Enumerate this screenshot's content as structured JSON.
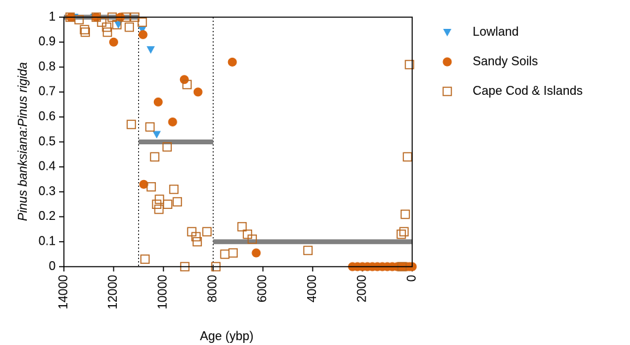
{
  "chart_data": {
    "type": "scatter",
    "x_label": "Age (ybp)",
    "y_label": "Pinus banksiana:Pinus rigida",
    "xlim": [
      14000,
      0
    ],
    "xticks": [
      14000,
      12000,
      10000,
      8000,
      6000,
      4000,
      2000,
      0
    ],
    "ylim": [
      0,
      1
    ],
    "yticks": [
      0,
      0.1,
      0.2,
      0.3,
      0.4,
      0.5,
      0.6,
      0.7,
      0.8,
      0.9,
      1
    ],
    "legend": "outside-right",
    "reference_lines": [
      {
        "x": [
          14000,
          11000
        ],
        "y": 1
      },
      {
        "x": [
          11000,
          8000
        ],
        "y": 0.5
      },
      {
        "x": [
          8000,
          0
        ],
        "y": 0.1
      }
    ],
    "boundaries": [
      11000,
      8000
    ],
    "series": [
      {
        "name": "Lowland",
        "color": "#3a9ee4",
        "marker": "triangle",
        "x": [
          13580,
          12780,
          11810,
          10850,
          10510,
          10270
        ],
        "values": [
          1.0,
          1.0,
          0.97,
          0.95,
          0.87,
          0.53
        ]
      },
      {
        "name": "Sandy Soils",
        "color": "#d9650f",
        "marker": "circle",
        "x": [
          13720,
          12700,
          11730,
          12000,
          10820,
          10790,
          10210,
          9630,
          9160,
          8610,
          7230,
          6270,
          2400,
          2200,
          2000,
          1800,
          1600,
          1400,
          1200,
          1000,
          800,
          600,
          400,
          200,
          100,
          0
        ],
        "values": [
          1.0,
          1.0,
          1.0,
          0.9,
          0.93,
          0.33,
          0.66,
          0.58,
          0.75,
          0.7,
          0.82,
          0.055,
          0,
          0,
          0,
          0,
          0,
          0,
          0,
          0,
          0,
          0,
          0,
          0,
          0,
          0
        ]
      },
      {
        "name": "Cape Cod & Islands",
        "color": "#b8651c",
        "marker": "square-open",
        "x": [
          13750,
          13390,
          13170,
          13140,
          12700,
          12480,
          12280,
          12250,
          12060,
          11870,
          11510,
          11370,
          11290,
          11150,
          10850,
          10740,
          10540,
          10490,
          10350,
          10270,
          10180,
          10160,
          9830,
          9850,
          9580,
          9440,
          9140,
          9050,
          8860,
          8690,
          8640,
          8250,
          7890,
          7530,
          7200,
          6840,
          6620,
          6430,
          4190,
          410,
          440,
          330,
          280,
          190,
          110
        ],
        "values": [
          1.0,
          0.99,
          0.95,
          0.94,
          1.0,
          0.98,
          0.96,
          0.94,
          1.0,
          0.97,
          1.0,
          0.96,
          0.57,
          1.0,
          0.98,
          0.03,
          0.56,
          0.32,
          0.44,
          0.25,
          0.23,
          0.27,
          0.25,
          0.48,
          0.31,
          0.26,
          0.0,
          0.73,
          0.14,
          0.12,
          0.1,
          0.14,
          0.0,
          0.05,
          0.055,
          0.16,
          0.13,
          0.11,
          0.065,
          0.0,
          0.13,
          0.14,
          0.21,
          0.44,
          0.81
        ]
      }
    ]
  }
}
